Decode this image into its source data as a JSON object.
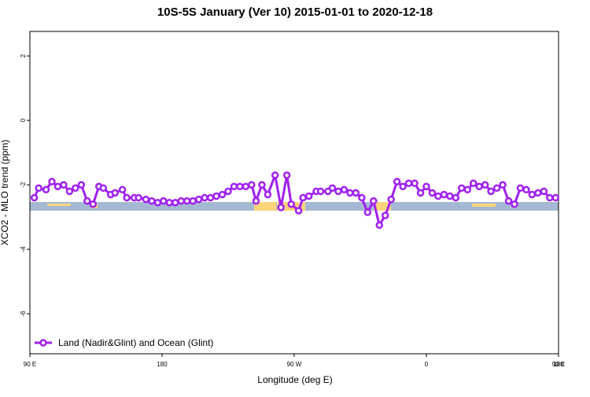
{
  "chart_data": {
    "type": "line",
    "title": "10S-5S January (Ver 10)   2015-01-01 to 2020-12-18",
    "xlabel": "Longitude (deg E)",
    "ylabel": "XCO2 - MLO trend (ppm)",
    "xlim": [
      90,
      450
    ],
    "ylim": [
      -7.24,
      2.76
    ],
    "xticks": [
      {
        "value": 90,
        "label": "90 E"
      },
      {
        "value": 180,
        "label": "180"
      },
      {
        "value": 270,
        "label": "90 W"
      },
      {
        "value": 360,
        "label": "0"
      },
      {
        "value": 450,
        "label": "90 E"
      },
      {
        "value": 540,
        "label": "180"
      }
    ],
    "yticks": [
      2,
      0,
      -2,
      -4,
      -6
    ],
    "legend": "bottom-left",
    "x": [
      93,
      96,
      101,
      105,
      109,
      113,
      117,
      121,
      125,
      129,
      133,
      137,
      140,
      145,
      148,
      153,
      156,
      161,
      164,
      169,
      173,
      177,
      181,
      185,
      189,
      193,
      197,
      201,
      205,
      209,
      213,
      217,
      221,
      225,
      229,
      233,
      237,
      241,
      244,
      248,
      252,
      257,
      261,
      265,
      268,
      273,
      276,
      280,
      285,
      288,
      293,
      296,
      300,
      304,
      308,
      312,
      316,
      320,
      324,
      328,
      332,
      336,
      340,
      344,
      348,
      352,
      356,
      360,
      364,
      368,
      372,
      376,
      380,
      384,
      388,
      392,
      396,
      400,
      404,
      408,
      412,
      416,
      420,
      424,
      428,
      432,
      436,
      440,
      444,
      448
    ],
    "series": [
      {
        "name": "Land (Nadir&Glint) and Ocean (Glint)",
        "color": "#a020f0",
        "values": [
          -2.4,
          -2.1,
          -2.15,
          -1.9,
          -2.05,
          -2.0,
          -2.2,
          -2.1,
          -2.0,
          -2.5,
          -2.6,
          -2.05,
          -2.1,
          -2.3,
          -2.25,
          -2.15,
          -2.4,
          -2.4,
          -2.4,
          -2.45,
          -2.5,
          -2.55,
          -2.5,
          -2.55,
          -2.55,
          -2.5,
          -2.5,
          -2.5,
          -2.45,
          -2.4,
          -2.4,
          -2.35,
          -2.3,
          -2.2,
          -2.05,
          -2.05,
          -2.05,
          -2.0,
          -2.5,
          -2.0,
          -2.3,
          -1.7,
          -2.7,
          -1.7,
          -2.6,
          -2.8,
          -2.4,
          -2.35,
          -2.2,
          -2.2,
          -2.2,
          -2.1,
          -2.2,
          -2.15,
          -2.25,
          -2.25,
          -2.4,
          -2.85,
          -2.5,
          -3.25,
          -2.95,
          -2.45,
          -1.9,
          -2.05,
          -1.95,
          -1.95,
          -2.25,
          -2.05,
          -2.25,
          -2.35,
          -2.3,
          -2.35,
          -2.4,
          -2.1,
          -2.15,
          -1.95,
          -2.05,
          -2.0,
          -2.2,
          -2.1,
          -2.0,
          -2.5,
          -2.6,
          -2.1,
          -2.15,
          -2.3,
          -2.25,
          -2.2,
          -2.4,
          -2.4
        ]
      }
    ]
  }
}
